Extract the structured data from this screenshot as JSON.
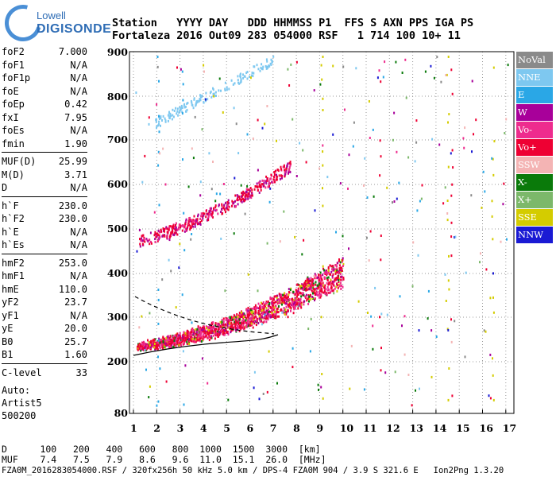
{
  "logo": {
    "line1": "Lowell",
    "line2": "DIGISONDE"
  },
  "header": {
    "row1": "Station   YYYY DAY   DDD HHMMSS P1  FFS S AXN PPS IGA PS",
    "row2": "Fortaleza 2016 Out09 283 054000 RSF   1 714 100 10+ 11"
  },
  "params": {
    "group1": [
      {
        "label": "foF2",
        "value": "7.000"
      },
      {
        "label": "foF1",
        "value": "N/A"
      },
      {
        "label": "foF1p",
        "value": "N/A"
      },
      {
        "label": "foE",
        "value": "N/A"
      },
      {
        "label": "foEp",
        "value": "0.42"
      },
      {
        "label": "fxI",
        "value": "7.95"
      },
      {
        "label": "foEs",
        "value": "N/A"
      },
      {
        "label": "fmin",
        "value": "1.90"
      }
    ],
    "group2": [
      {
        "label": "MUF(D)",
        "value": "25.99"
      },
      {
        "label": "M(D)",
        "value": "3.71"
      },
      {
        "label": "D",
        "value": "N/A"
      }
    ],
    "group3": [
      {
        "label": "h`F",
        "value": "230.0"
      },
      {
        "label": "h`F2",
        "value": "230.0"
      },
      {
        "label": "h`E",
        "value": "N/A"
      },
      {
        "label": "h`Es",
        "value": "N/A"
      }
    ],
    "group4": [
      {
        "label": "hmF2",
        "value": "253.0"
      },
      {
        "label": "hmF1",
        "value": "N/A"
      },
      {
        "label": "hmE",
        "value": "110.0"
      },
      {
        "label": "yF2",
        "value": "23.7"
      },
      {
        "label": "yF1",
        "value": "N/A"
      },
      {
        "label": "yE",
        "value": "20.0"
      },
      {
        "label": "B0",
        "value": "25.7"
      },
      {
        "label": "B1",
        "value": "1.60"
      }
    ],
    "group5": [
      {
        "label": "C-level",
        "value": "33"
      }
    ]
  },
  "auto": {
    "line1": "Auto:",
    "line2": "Artist5",
    "line3": "500200"
  },
  "legend": [
    {
      "label": "NoVal",
      "color": "#8a8a8a"
    },
    {
      "label": "NNE",
      "color": "#7ec8f0"
    },
    {
      "label": "E",
      "color": "#2aa7e6"
    },
    {
      "label": "W",
      "color": "#a8009a"
    },
    {
      "label": "Vo-",
      "color": "#ee2c8e"
    },
    {
      "label": "Vo+",
      "color": "#ee0033"
    },
    {
      "label": "SSW",
      "color": "#f4b4b4"
    },
    {
      "label": "X-",
      "color": "#0a7a0a"
    },
    {
      "label": "X+",
      "color": "#7cb86a"
    },
    {
      "label": "SSE",
      "color": "#d4cc00"
    },
    {
      "label": "NNW",
      "color": "#1a1ad4"
    }
  ],
  "axes": {
    "x_ticks": [
      "1",
      "2",
      "3",
      "4",
      "5",
      "6",
      "7",
      "8",
      "9",
      "10",
      "11",
      "12",
      "13",
      "14",
      "15",
      "16",
      "17"
    ],
    "y_ticks": [
      "900",
      "800",
      "700",
      "600",
      "500",
      "400",
      "300",
      "200",
      "80"
    ]
  },
  "bottom": {
    "row1": "D      100   200   400   600   800  1000  1500  3000  [km]",
    "row2": "MUF    7.4   7.5   7.9   8.6   9.6  11.0  15.1  26.0  [MHz]",
    "row3": "FZA0M_2016283054000.RSF / 320fx256h 50 kHz 5.0 km / DPS-4 FZA0M 904 / 3.9 S 321.6 E   Ion2Png 1.3.20"
  }
}
